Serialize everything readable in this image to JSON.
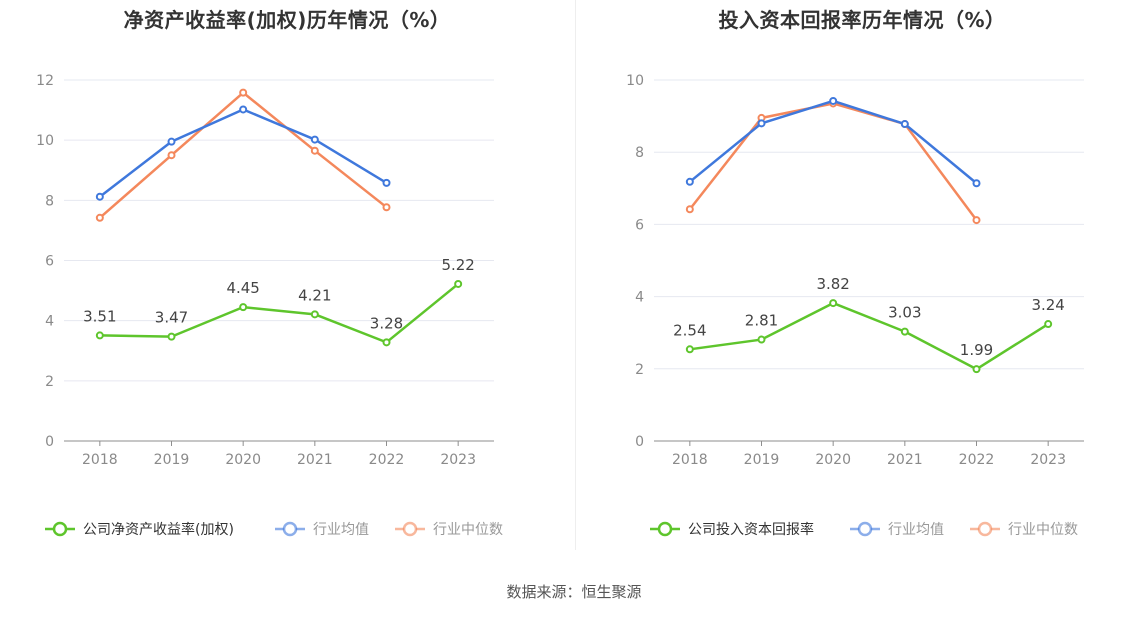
{
  "source_text": "数据来源：恒生聚源",
  "chart_data": [
    {
      "type": "line",
      "title": "净资产收益率(加权)历年情况（%）",
      "categories": [
        "2018",
        "2019",
        "2020",
        "2021",
        "2022",
        "2023"
      ],
      "ylim": [
        0,
        12
      ],
      "yticks": [
        "0",
        "2",
        "4",
        "6",
        "8",
        "10",
        "12"
      ],
      "grid": true,
      "legend_position": "bottom",
      "series": [
        {
          "name": "公司净资产收益率(加权)",
          "color": "#5ec52c",
          "values": [
            3.51,
            3.47,
            4.45,
            4.21,
            3.28,
            5.22
          ],
          "labels": [
            "3.51",
            "3.47",
            "4.45",
            "4.21",
            "3.28",
            "5.22"
          ]
        },
        {
          "name": "行业均值",
          "color": "#3f78dc",
          "values": [
            8.12,
            9.95,
            11.02,
            10.02,
            8.58,
            null
          ]
        },
        {
          "name": "行业中位数",
          "color": "#f4885c",
          "values": [
            7.42,
            9.5,
            11.58,
            9.65,
            7.77,
            null
          ]
        }
      ]
    },
    {
      "type": "line",
      "title": "投入资本回报率历年情况（%）",
      "categories": [
        "2018",
        "2019",
        "2020",
        "2021",
        "2022",
        "2023"
      ],
      "ylim": [
        0,
        10
      ],
      "yticks": [
        "0",
        "2",
        "4",
        "6",
        "8",
        "10"
      ],
      "grid": true,
      "legend_position": "bottom",
      "series": [
        {
          "name": "公司投入资本回报率",
          "color": "#5ec52c",
          "values": [
            2.54,
            2.81,
            3.82,
            3.03,
            1.99,
            3.24
          ],
          "labels": [
            "2.54",
            "2.81",
            "3.82",
            "3.03",
            "1.99",
            "3.24"
          ]
        },
        {
          "name": "行业均值",
          "color": "#3f78dc",
          "values": [
            7.18,
            8.8,
            9.42,
            8.78,
            7.14,
            null
          ]
        },
        {
          "name": "行业中位数",
          "color": "#f4885c",
          "values": [
            6.42,
            8.95,
            9.35,
            8.78,
            6.12,
            null
          ]
        }
      ]
    }
  ]
}
